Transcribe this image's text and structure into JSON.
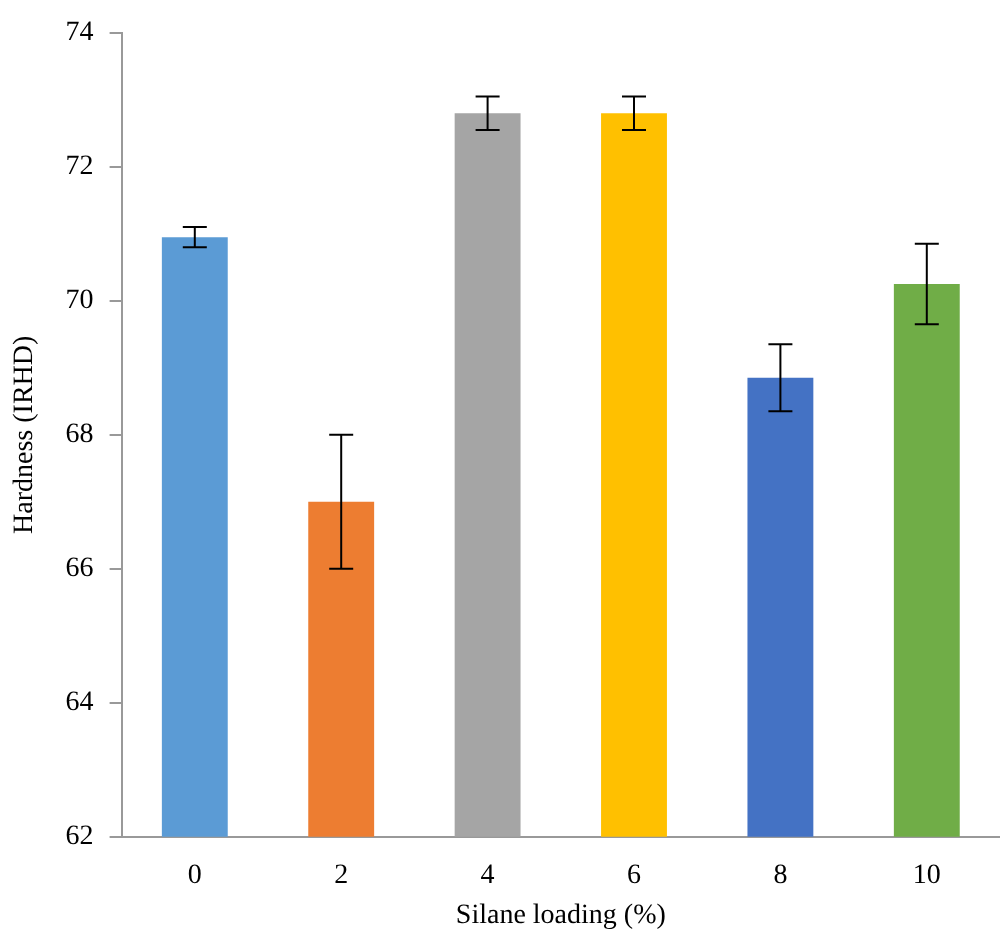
{
  "chart_data": {
    "type": "bar",
    "xlabel": "Silane loading (%)",
    "ylabel": "Hardness (IRHD)",
    "categories": [
      "0",
      "2",
      "4",
      "6",
      "8",
      "10"
    ],
    "values": [
      70.95,
      67.0,
      72.8,
      72.8,
      68.85,
      70.25
    ],
    "errors": [
      0.15,
      1.0,
      0.25,
      0.25,
      0.5,
      0.6
    ],
    "colors": [
      "#5b9bd5",
      "#ed7d31",
      "#a5a5a5",
      "#ffc000",
      "#4472c4",
      "#70ad47"
    ],
    "ylim": [
      62,
      74
    ],
    "yticks": [
      62,
      64,
      66,
      68,
      70,
      72,
      74
    ],
    "grid": false,
    "legend": false
  }
}
